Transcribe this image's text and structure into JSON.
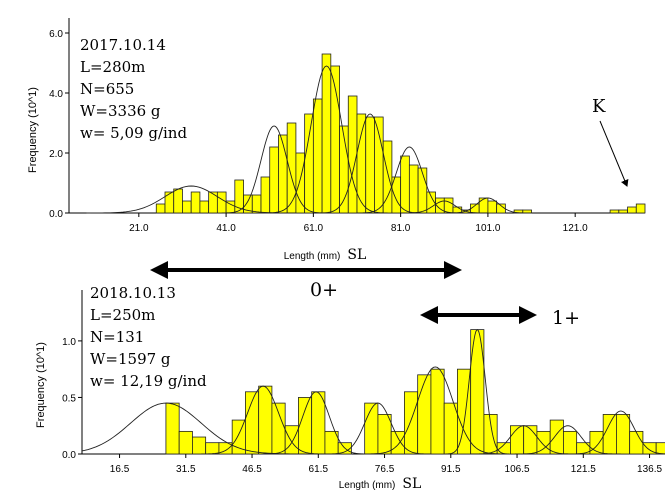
{
  "chart_data": [
    {
      "type": "bar",
      "xlabel": "Length (mm)",
      "xlabel_suffix": "SL",
      "ylabel": "Frequency (10^1)",
      "xlim": [
        5,
        137
      ],
      "ylim": [
        0,
        6.5
      ],
      "x_ticks": [
        "21.0",
        "41.0",
        "61.0",
        "81.0",
        "101.0",
        "121.0"
      ],
      "y_ticks": [
        "0.0",
        "2.0",
        "4.0",
        "6.0"
      ],
      "bin_width": 2,
      "bars": [
        {
          "x": 26,
          "y": 0.3
        },
        {
          "x": 28,
          "y": 0.7
        },
        {
          "x": 30,
          "y": 0.8
        },
        {
          "x": 32,
          "y": 0.4
        },
        {
          "x": 34,
          "y": 0.7
        },
        {
          "x": 36,
          "y": 0.4
        },
        {
          "x": 38,
          "y": 0.7
        },
        {
          "x": 40,
          "y": 0.7
        },
        {
          "x": 42,
          "y": 0.4
        },
        {
          "x": 44,
          "y": 1.1
        },
        {
          "x": 46,
          "y": 0.6
        },
        {
          "x": 48,
          "y": 0.6
        },
        {
          "x": 50,
          "y": 1.2
        },
        {
          "x": 52,
          "y": 2.2
        },
        {
          "x": 54,
          "y": 2.6
        },
        {
          "x": 56,
          "y": 3.0
        },
        {
          "x": 58,
          "y": 2.0
        },
        {
          "x": 60,
          "y": 3.3
        },
        {
          "x": 62,
          "y": 3.8
        },
        {
          "x": 64,
          "y": 5.3
        },
        {
          "x": 66,
          "y": 4.9
        },
        {
          "x": 68,
          "y": 2.9
        },
        {
          "x": 70,
          "y": 3.9
        },
        {
          "x": 72,
          "y": 3.3
        },
        {
          "x": 74,
          "y": 3.2
        },
        {
          "x": 76,
          "y": 3.2
        },
        {
          "x": 78,
          "y": 2.4
        },
        {
          "x": 80,
          "y": 1.2
        },
        {
          "x": 82,
          "y": 1.9
        },
        {
          "x": 84,
          "y": 1.6
        },
        {
          "x": 86,
          "y": 1.5
        },
        {
          "x": 88,
          "y": 0.7
        },
        {
          "x": 90,
          "y": 0.5
        },
        {
          "x": 92,
          "y": 0.5
        },
        {
          "x": 94,
          "y": 0.2
        },
        {
          "x": 96,
          "y": 0.1
        },
        {
          "x": 98,
          "y": 0.3
        },
        {
          "x": 100,
          "y": 0.5
        },
        {
          "x": 102,
          "y": 0.4
        },
        {
          "x": 104,
          "y": 0.3
        },
        {
          "x": 108,
          "y": 0.1
        },
        {
          "x": 110,
          "y": 0.1
        },
        {
          "x": 130,
          "y": 0.1
        },
        {
          "x": 132,
          "y": 0.1
        },
        {
          "x": 134,
          "y": 0.2
        },
        {
          "x": 136,
          "y": 0.3
        }
      ],
      "components": [
        {
          "mean": 33,
          "sd": 6,
          "peak": 0.9
        },
        {
          "mean": 52,
          "sd": 3,
          "peak": 2.9
        },
        {
          "mean": 64,
          "sd": 3.5,
          "peak": 4.9
        },
        {
          "mean": 74,
          "sd": 3,
          "peak": 3.3
        },
        {
          "mean": 83,
          "sd": 3,
          "peak": 2.2
        },
        {
          "mean": 91,
          "sd": 2.5,
          "peak": 0.4
        },
        {
          "mean": 101,
          "sd": 2.5,
          "peak": 0.5
        }
      ],
      "annotation": {
        "lines": [
          "2017.10.14",
          "L=280m",
          "N=655",
          "W=3336 g",
          "w= 5,09 g/ind"
        ],
        "marker": "K"
      },
      "colors": {
        "bar": "#ffff00",
        "bar_edge": "#222222",
        "curve": "#222222"
      }
    },
    {
      "type": "bar",
      "xlabel": "Length (mm)",
      "xlabel_suffix": "SL",
      "ylabel": "Frequency (10^1)",
      "xlim": [
        8,
        140
      ],
      "ylim": [
        0,
        1.45
      ],
      "x_ticks": [
        "16.5",
        "31.5",
        "46.5",
        "61.5",
        "76.5",
        "91.5",
        "106.5",
        "121.5",
        "136.5"
      ],
      "y_ticks": [
        "0.0",
        "0.5",
        "1.0"
      ],
      "bin_width": 3,
      "bars": [
        {
          "x": 28.5,
          "y": 0.45
        },
        {
          "x": 31.5,
          "y": 0.2
        },
        {
          "x": 34.5,
          "y": 0.15
        },
        {
          "x": 37.5,
          "y": 0.1
        },
        {
          "x": 40.5,
          "y": 0.1
        },
        {
          "x": 43.5,
          "y": 0.3
        },
        {
          "x": 46.5,
          "y": 0.55
        },
        {
          "x": 49.5,
          "y": 0.6
        },
        {
          "x": 52.5,
          "y": 0.45
        },
        {
          "x": 55.5,
          "y": 0.25
        },
        {
          "x": 58.5,
          "y": 0.5
        },
        {
          "x": 61.5,
          "y": 0.55
        },
        {
          "x": 64.5,
          "y": 0.2
        },
        {
          "x": 67.5,
          "y": 0.1
        },
        {
          "x": 70.5,
          "y": 0.0
        },
        {
          "x": 73.5,
          "y": 0.45
        },
        {
          "x": 76.5,
          "y": 0.35
        },
        {
          "x": 79.5,
          "y": 0.2
        },
        {
          "x": 82.5,
          "y": 0.55
        },
        {
          "x": 85.5,
          "y": 0.7
        },
        {
          "x": 88.5,
          "y": 0.75
        },
        {
          "x": 91.5,
          "y": 0.45
        },
        {
          "x": 94.5,
          "y": 0.75
        },
        {
          "x": 97.5,
          "y": 1.1
        },
        {
          "x": 100.5,
          "y": 0.35
        },
        {
          "x": 103.5,
          "y": 0.1
        },
        {
          "x": 106.5,
          "y": 0.25
        },
        {
          "x": 109.5,
          "y": 0.25
        },
        {
          "x": 112.5,
          "y": 0.2
        },
        {
          "x": 115.5,
          "y": 0.3
        },
        {
          "x": 118.5,
          "y": 0.2
        },
        {
          "x": 121.5,
          "y": 0.1
        },
        {
          "x": 124.5,
          "y": 0.2
        },
        {
          "x": 127.5,
          "y": 0.35
        },
        {
          "x": 130.5,
          "y": 0.35
        },
        {
          "x": 133.5,
          "y": 0.2
        },
        {
          "x": 136.5,
          "y": 0.1
        },
        {
          "x": 139.5,
          "y": 0.1
        }
      ],
      "components": [
        {
          "mean": 27,
          "sd": 8,
          "peak": 0.45
        },
        {
          "mean": 49,
          "sd": 3.5,
          "peak": 0.6
        },
        {
          "mean": 61,
          "sd": 3,
          "peak": 0.55
        },
        {
          "mean": 75,
          "sd": 3,
          "peak": 0.45
        },
        {
          "mean": 88,
          "sd": 4,
          "peak": 0.77
        },
        {
          "mean": 97.5,
          "sd": 1.8,
          "peak": 1.1
        },
        {
          "mean": 108,
          "sd": 3,
          "peak": 0.25
        },
        {
          "mean": 118,
          "sd": 3,
          "peak": 0.25
        },
        {
          "mean": 130,
          "sd": 3,
          "peak": 0.38
        }
      ],
      "annotation": {
        "lines": [
          "2018.10.13",
          "L=250m",
          "N=131",
          "W=1597 g",
          "w= 12,19 g/ind"
        ]
      },
      "colors": {
        "bar": "#ffff00",
        "bar_edge": "#222222",
        "curve": "#222222"
      }
    }
  ],
  "labels": {
    "age_0": "0+",
    "age_1": "1+"
  }
}
